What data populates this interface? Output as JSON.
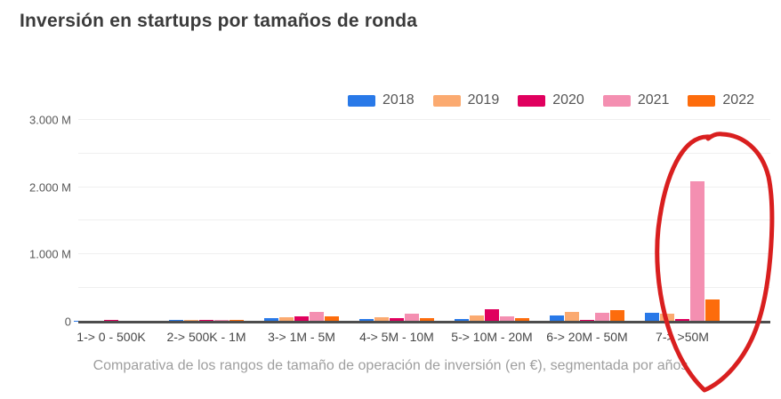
{
  "title": "Inversión en startups por tamaños de ronda",
  "caption": "Comparativa de los rangos de tamaño de operación de inversión (en €), segmentada por años",
  "annotation": {
    "shape": "hand-drawn red circle",
    "color": "#d91f1f",
    "highlighted_category": "7-> >50M"
  },
  "chart_data": {
    "type": "bar",
    "title": "Inversión en startups por tamaños de ronda",
    "subtitle": "Comparativa de los rangos de tamaño de operación de inversión (en €), segmentada por años",
    "unit": "millions of EUR",
    "categories": [
      "1-> 0 - 500K",
      "2-> 500K - 1M",
      "3-> 1M - 5M",
      "4-> 5M - 10M",
      "5-> 10M - 20M",
      "6-> 20M - 50M",
      "7-> >50M"
    ],
    "series": [
      {
        "name": "2018",
        "color": "#2979e8",
        "values": [
          5,
          9,
          40,
          25,
          20,
          75,
          115
        ]
      },
      {
        "name": "2019",
        "color": "#fbaa70",
        "values": [
          4,
          8,
          50,
          55,
          85,
          135,
          110
        ]
      },
      {
        "name": "2020",
        "color": "#e0005e",
        "values": [
          8,
          13,
          70,
          35,
          175,
          15,
          30
        ]
      },
      {
        "name": "2021",
        "color": "#f48fb1",
        "values": [
          6,
          11,
          130,
          105,
          60,
          120,
          2080
        ]
      },
      {
        "name": "2022",
        "color": "#fd6c0c",
        "values": [
          6,
          11,
          65,
          45,
          35,
          160,
          315
        ]
      }
    ],
    "xlabel": "",
    "ylabel": "",
    "ylim": [
      0,
      3000
    ],
    "y_ticks": [
      "0",
      "1.000 M",
      "2.000 M",
      "3.000 M"
    ],
    "grid": "horizontal gridlines every 500 M",
    "legend_position": "top-right"
  }
}
